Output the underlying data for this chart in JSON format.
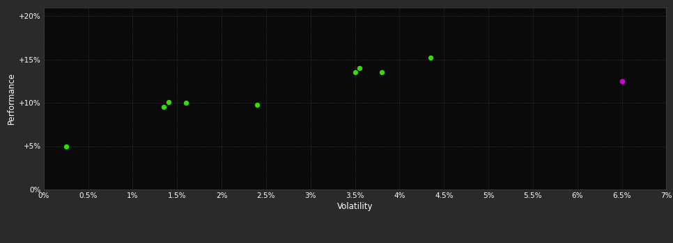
{
  "background_color": "#2a2a2a",
  "plot_bg_color": "#0a0a0a",
  "grid_color": "#444444",
  "tick_color": "#ffffff",
  "label_color": "#ffffff",
  "green_points": [
    [
      0.0025,
      0.05
    ],
    [
      0.0135,
      0.095
    ],
    [
      0.014,
      0.101
    ],
    [
      0.016,
      0.1
    ],
    [
      0.024,
      0.098
    ],
    [
      0.035,
      0.135
    ],
    [
      0.0355,
      0.14
    ],
    [
      0.038,
      0.135
    ],
    [
      0.0435,
      0.152
    ]
  ],
  "magenta_point": [
    0.065,
    0.125
  ],
  "green_color": "#33dd00",
  "magenta_color": "#cc00cc",
  "xlabel": "Volatility",
  "ylabel": "Performance",
  "x_ticks": [
    0.0,
    0.005,
    0.01,
    0.015,
    0.02,
    0.025,
    0.03,
    0.035,
    0.04,
    0.045,
    0.05,
    0.055,
    0.06,
    0.065,
    0.07
  ],
  "x_tick_labels": [
    "0%",
    "0.5%",
    "1%",
    "1.5%",
    "2%",
    "2.5%",
    "3%",
    "3.5%",
    "4%",
    "4.5%",
    "5%",
    "5.5%",
    "6%",
    "6.5%",
    "7%"
  ],
  "y_ticks": [
    0.0,
    0.05,
    0.1,
    0.15,
    0.2
  ],
  "y_tick_labels": [
    "0%",
    "+5%",
    "+10%",
    "+15%",
    "+20%"
  ],
  "xlim": [
    0.0,
    0.07
  ],
  "ylim": [
    0.0,
    0.21
  ]
}
